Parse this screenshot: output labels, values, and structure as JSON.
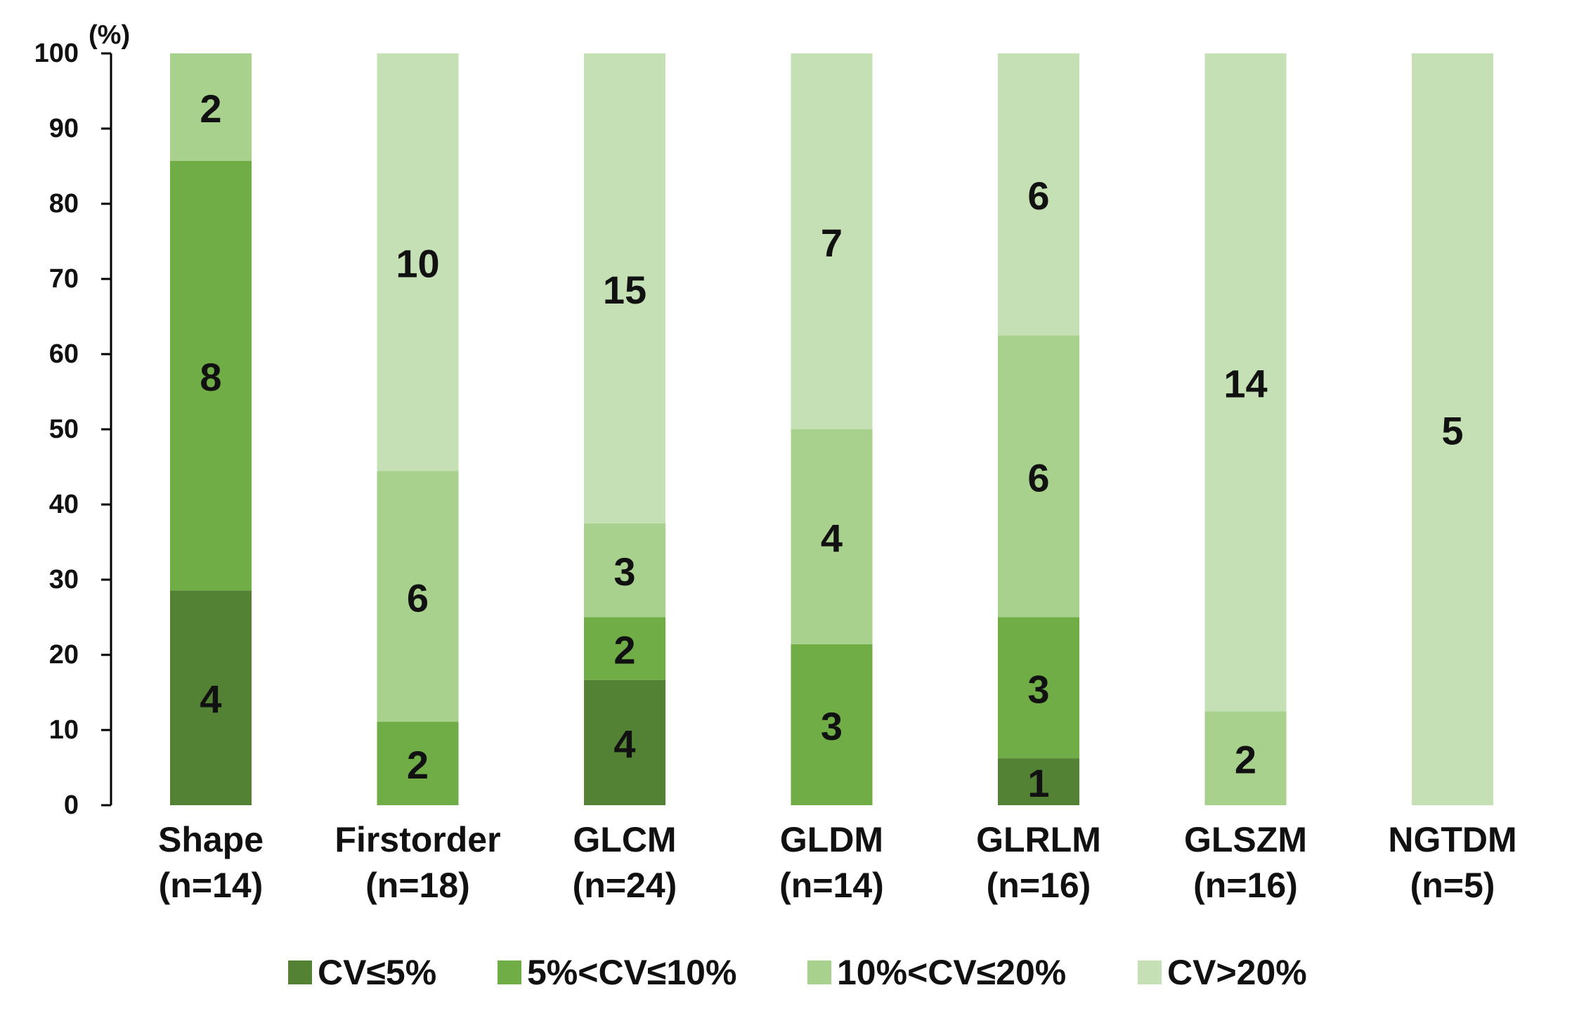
{
  "chart_data": {
    "type": "bar",
    "stacked": true,
    "normalized": true,
    "title": "",
    "xlabel": "",
    "ylabel": "",
    "y_unit": "(%)",
    "ylim": [
      0,
      100
    ],
    "yticks": [
      0,
      10,
      20,
      30,
      40,
      50,
      60,
      70,
      80,
      90,
      100
    ],
    "categories": [
      {
        "name": "Shape",
        "n_label": "(n=14)"
      },
      {
        "name": "Firstorder",
        "n_label": "(n=18)"
      },
      {
        "name": "GLCM",
        "n_label": "(n=24)"
      },
      {
        "name": "GLDM",
        "n_label": "(n=14)"
      },
      {
        "name": "GLRLM",
        "n_label": "(n=16)"
      },
      {
        "name": "GLSZM",
        "n_label": "(n=16)"
      },
      {
        "name": "NGTDM",
        "n_label": "(n=5)"
      }
    ],
    "series": [
      {
        "name": "CV≤5%",
        "color": "#548235",
        "values": [
          4,
          0,
          4,
          0,
          1,
          0,
          0
        ]
      },
      {
        "name": "5%<CV≤10%",
        "color": "#70AD47",
        "values": [
          8,
          2,
          2,
          3,
          3,
          0,
          0
        ]
      },
      {
        "name": "10%<CV≤20%",
        "color": "#A9D18E",
        "values": [
          2,
          6,
          3,
          4,
          6,
          2,
          0
        ]
      },
      {
        "name": "CV>20%",
        "color": "#C5E0B4",
        "values": [
          0,
          10,
          15,
          7,
          6,
          14,
          5
        ]
      }
    ],
    "legend_position": "bottom",
    "grid": false
  }
}
